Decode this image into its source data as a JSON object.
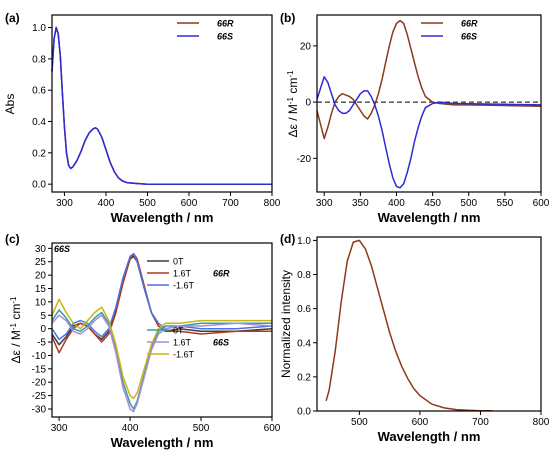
{
  "chart_data": [
    {
      "panel": "(a)",
      "type": "line",
      "xlabel": "Wavelength / nm",
      "ylabel": "Abs",
      "xlim": [
        270,
        800
      ],
      "ylim": [
        -0.05,
        1.08
      ],
      "xticks": [
        300,
        400,
        500,
        600,
        700,
        800
      ],
      "yticks": [
        0.0,
        0.2,
        0.4,
        0.6,
        0.8,
        1.0
      ],
      "legend_position": "top-right",
      "series": [
        {
          "name": "66",
          "name_suffix": "R",
          "color": "#8B3A1A",
          "x": [
            270,
            275,
            280,
            285,
            290,
            295,
            300,
            305,
            310,
            315,
            320,
            330,
            340,
            350,
            360,
            370,
            375,
            380,
            390,
            400,
            410,
            420,
            430,
            440,
            450,
            470,
            500,
            550,
            600,
            700,
            800
          ],
          "y": [
            0.72,
            0.93,
            1.0,
            0.96,
            0.82,
            0.58,
            0.36,
            0.2,
            0.12,
            0.1,
            0.11,
            0.15,
            0.21,
            0.28,
            0.33,
            0.355,
            0.36,
            0.35,
            0.3,
            0.22,
            0.14,
            0.08,
            0.04,
            0.02,
            0.01,
            0.005,
            0.0,
            0.0,
            0.0,
            0.0,
            0.0
          ]
        },
        {
          "name": "66",
          "name_suffix": "S",
          "color": "#2B2BD6",
          "x": [
            270,
            275,
            280,
            285,
            290,
            295,
            300,
            305,
            310,
            315,
            320,
            330,
            340,
            350,
            360,
            370,
            375,
            380,
            390,
            400,
            410,
            420,
            430,
            440,
            450,
            470,
            500,
            550,
            600,
            700,
            800
          ],
          "y": [
            0.72,
            0.93,
            1.0,
            0.96,
            0.82,
            0.58,
            0.36,
            0.2,
            0.12,
            0.1,
            0.11,
            0.15,
            0.21,
            0.28,
            0.33,
            0.355,
            0.36,
            0.35,
            0.3,
            0.22,
            0.14,
            0.08,
            0.04,
            0.02,
            0.01,
            0.005,
            0.0,
            0.0,
            0.0,
            0.0,
            0.0
          ]
        }
      ]
    },
    {
      "panel": "(b)",
      "type": "line",
      "xlabel": "Wavelength / nm",
      "ylabel": "Δε / M⁻¹ cm⁻¹",
      "xlim": [
        290,
        600
      ],
      "ylim": [
        -32,
        31
      ],
      "xticks": [
        300,
        350,
        400,
        450,
        500,
        550,
        600
      ],
      "yticks": [
        -20,
        0,
        20
      ],
      "zero_line": "dashed",
      "legend_position": "top-right",
      "series": [
        {
          "name": "66",
          "name_suffix": "R",
          "color": "#8B3A1A",
          "x": [
            290,
            295,
            300,
            305,
            310,
            315,
            320,
            325,
            330,
            335,
            340,
            345,
            350,
            355,
            360,
            365,
            370,
            375,
            380,
            385,
            390,
            395,
            400,
            405,
            410,
            415,
            420,
            425,
            430,
            435,
            440,
            450,
            460,
            470,
            480,
            500,
            550,
            600
          ],
          "y": [
            -3,
            -8,
            -13,
            -9,
            -4,
            0,
            2,
            3,
            2.5,
            2,
            1,
            -1,
            -3,
            -5,
            -6,
            -4,
            -1,
            3,
            8,
            14,
            20,
            25,
            28,
            29,
            28,
            24,
            19,
            14,
            9,
            5,
            2,
            0,
            -0.5,
            -0.8,
            -1,
            -1,
            -1.2,
            -1.5
          ]
        },
        {
          "name": "66",
          "name_suffix": "S",
          "color": "#2B2BD6",
          "x": [
            290,
            295,
            300,
            305,
            310,
            315,
            320,
            325,
            330,
            335,
            340,
            345,
            350,
            355,
            360,
            365,
            370,
            375,
            380,
            385,
            390,
            395,
            400,
            405,
            410,
            415,
            420,
            425,
            430,
            435,
            440,
            450,
            460,
            470,
            480,
            500,
            550,
            600
          ],
          "y": [
            1,
            5,
            9,
            7,
            3,
            -1,
            -3,
            -4,
            -4,
            -3,
            -1,
            1,
            3,
            4,
            4,
            2,
            -1,
            -5,
            -10,
            -16,
            -22,
            -27,
            -30,
            -30.5,
            -29,
            -25,
            -20,
            -14,
            -9,
            -5,
            -2,
            -0.5,
            0,
            -0.3,
            -0.5,
            -0.6,
            -0.8,
            -1
          ]
        }
      ]
    },
    {
      "panel": "(c)",
      "type": "line",
      "corner_label": "66S",
      "xlabel": "Wavelength / nm",
      "ylabel": "Δε / M⁻¹ cm⁻¹",
      "xlim": [
        290,
        600
      ],
      "ylim": [
        -33,
        32
      ],
      "xticks": [
        300,
        400,
        500,
        600
      ],
      "yticks": [
        -30,
        -25,
        -20,
        -15,
        -10,
        -5,
        0,
        5,
        10,
        15,
        20,
        25,
        30
      ],
      "legend_groups": [
        {
          "group_name": "66",
          "group_suffix": "R",
          "entries": [
            "0T",
            "1.6T",
            "-1.6T"
          ]
        },
        {
          "group_name": "66",
          "group_suffix": "S",
          "entries": [
            "0T",
            "1.6T",
            "-1.6T"
          ]
        }
      ],
      "series": [
        {
          "name": "0T",
          "group": "66R",
          "color": "#3D3D3D",
          "x": [
            290,
            300,
            310,
            320,
            330,
            340,
            350,
            360,
            370,
            380,
            390,
            400,
            405,
            410,
            420,
            430,
            440,
            450,
            470,
            500,
            550,
            600
          ],
          "y": [
            -2,
            -6,
            -3,
            1,
            2,
            1,
            -2,
            -4,
            -1,
            7,
            18,
            26,
            27,
            25,
            15,
            6,
            1,
            -1,
            0,
            -1,
            -1,
            0
          ]
        },
        {
          "name": "1.6T",
          "group": "66R",
          "color": "#B03A1E",
          "x": [
            290,
            300,
            310,
            320,
            330,
            340,
            350,
            360,
            370,
            380,
            390,
            400,
            405,
            410,
            420,
            430,
            440,
            450,
            470,
            500,
            550,
            600
          ],
          "y": [
            -3,
            -9,
            -4,
            0,
            2,
            1,
            -2,
            -5,
            -2,
            6,
            17,
            26,
            28,
            26,
            16,
            6,
            1,
            -1,
            -1,
            -2,
            -1,
            -1
          ]
        },
        {
          "name": "-1.6T",
          "group": "66R",
          "color": "#4A72E8",
          "x": [
            290,
            300,
            310,
            320,
            330,
            340,
            350,
            360,
            370,
            380,
            390,
            400,
            405,
            410,
            420,
            430,
            440,
            450,
            470,
            500,
            550,
            600
          ],
          "y": [
            0,
            -4,
            -2,
            2,
            3,
            2,
            -1,
            -3,
            0,
            8,
            19,
            27,
            28,
            25,
            15,
            6,
            2,
            0,
            1,
            0,
            0,
            1
          ]
        },
        {
          "name": "0T",
          "group": "66S",
          "color": "#3A9AA0",
          "x": [
            290,
            300,
            310,
            320,
            330,
            340,
            350,
            360,
            370,
            380,
            390,
            400,
            405,
            410,
            420,
            430,
            440,
            450,
            470,
            500,
            550,
            600
          ],
          "y": [
            3,
            7,
            4,
            0,
            -1,
            1,
            4,
            6,
            2,
            -8,
            -20,
            -28,
            -30,
            -27,
            -17,
            -7,
            -1,
            1,
            1,
            2,
            2,
            2
          ]
        },
        {
          "name": "1.6T",
          "group": "66S",
          "color": "#A58FD6",
          "x": [
            290,
            300,
            310,
            320,
            330,
            340,
            350,
            360,
            370,
            380,
            390,
            400,
            405,
            410,
            420,
            430,
            440,
            450,
            470,
            500,
            550,
            600
          ],
          "y": [
            2,
            5,
            3,
            -1,
            -2,
            0,
            3,
            5,
            1,
            -9,
            -22,
            -30,
            -31,
            -28,
            -18,
            -8,
            -2,
            0,
            1,
            1,
            2,
            1
          ]
        },
        {
          "name": "-1.6T",
          "group": "66S",
          "color": "#C8B414",
          "x": [
            290,
            300,
            310,
            320,
            330,
            340,
            350,
            360,
            370,
            380,
            390,
            400,
            405,
            410,
            420,
            430,
            440,
            450,
            470,
            500,
            550,
            600
          ],
          "y": [
            5,
            11,
            6,
            2,
            0,
            3,
            6,
            8,
            3,
            -6,
            -18,
            -25,
            -26,
            -24,
            -15,
            -6,
            0,
            2,
            2,
            3,
            3,
            3
          ]
        }
      ]
    },
    {
      "panel": "(d)",
      "type": "line",
      "xlabel": "Wavelength / nm",
      "ylabel": "Normalized intensity",
      "xlim": [
        430,
        800
      ],
      "ylim": [
        0,
        1.02
      ],
      "xticks": [
        500,
        600,
        700,
        800
      ],
      "yticks": [
        0.0,
        0.2,
        0.4,
        0.6,
        0.8,
        1.0
      ],
      "series": [
        {
          "color": "#8B3A1A",
          "x": [
            445,
            450,
            460,
            470,
            480,
            490,
            500,
            510,
            520,
            530,
            540,
            550,
            560,
            570,
            580,
            590,
            600,
            620,
            640,
            660,
            680,
            700,
            720
          ],
          "y": [
            0.06,
            0.12,
            0.35,
            0.64,
            0.88,
            0.99,
            1.0,
            0.95,
            0.85,
            0.72,
            0.59,
            0.46,
            0.35,
            0.26,
            0.19,
            0.13,
            0.09,
            0.04,
            0.018,
            0.008,
            0.004,
            0.002,
            0.001
          ]
        }
      ]
    }
  ]
}
